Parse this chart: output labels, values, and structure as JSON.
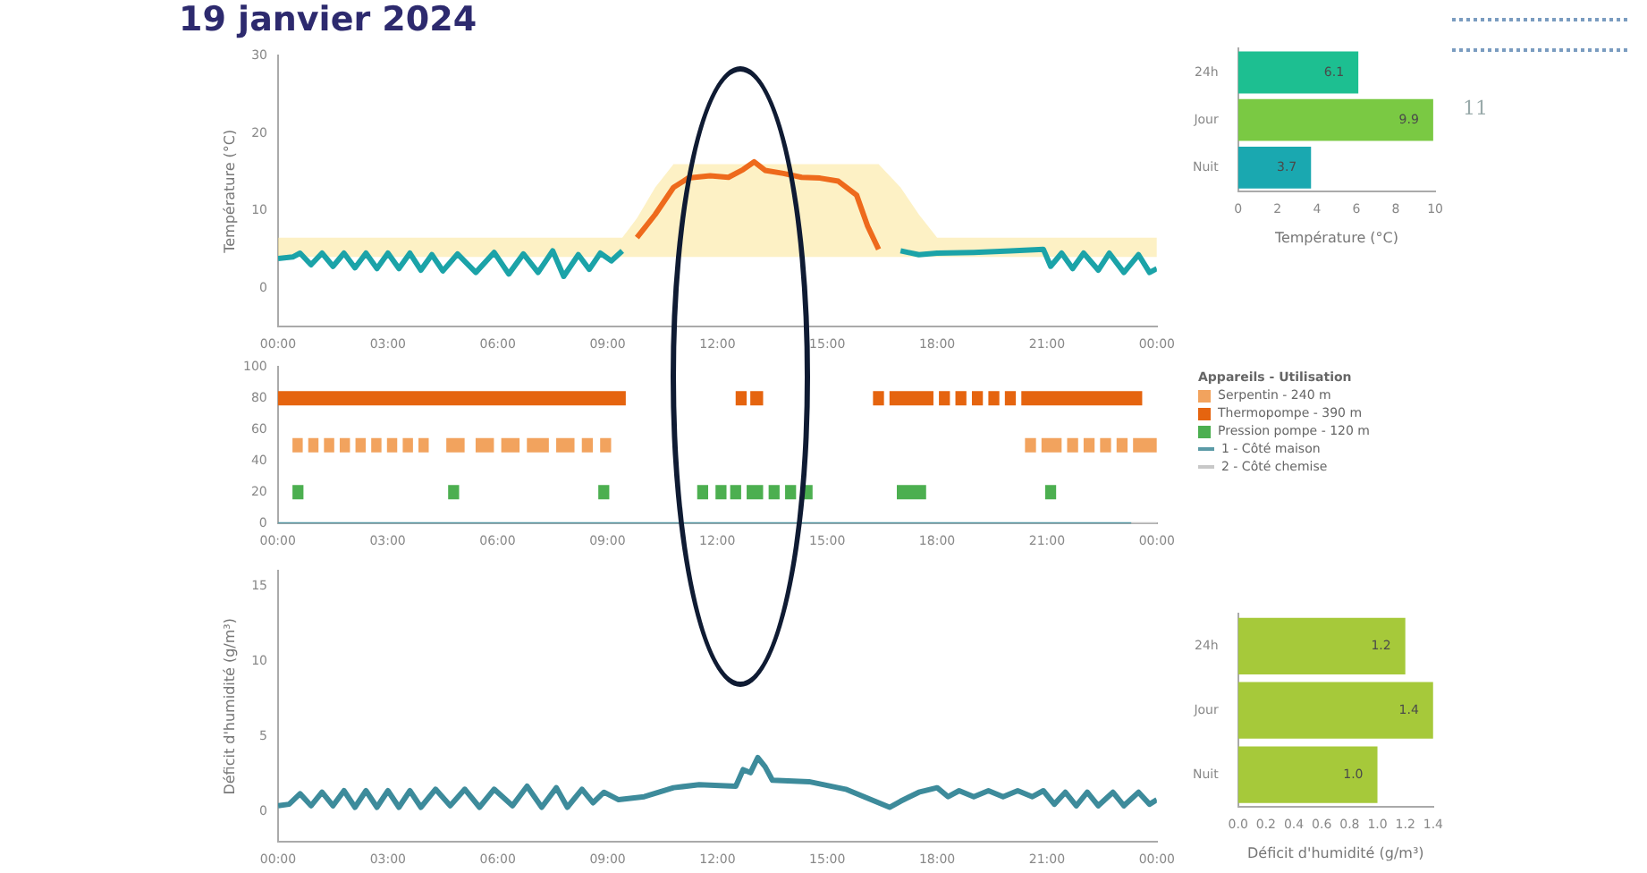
{
  "chart_data": [
    {
      "type": "line",
      "title": "19 janvier 2024",
      "ylabel": "Température (°C)",
      "xlim": [
        0,
        24
      ],
      "ylim": [
        -5,
        30
      ],
      "yticks": [
        0,
        10,
        20,
        30
      ],
      "xticks": [
        {
          "value": 0,
          "label": "00:00"
        },
        {
          "value": 3,
          "label": "03:00"
        },
        {
          "value": 6,
          "label": "06:00"
        },
        {
          "value": 9,
          "label": "09:00"
        },
        {
          "value": 12,
          "label": "12:00"
        },
        {
          "value": 15,
          "label": "15:00"
        },
        {
          "value": 18,
          "label": "18:00"
        },
        {
          "value": 21,
          "label": "21:00"
        },
        {
          "value": 24,
          "label": "00:00"
        }
      ],
      "x": [
        0,
        0.4,
        0.6,
        0.9,
        1.2,
        1.5,
        1.8,
        2.1,
        2.4,
        2.7,
        3.0,
        3.3,
        3.6,
        3.9,
        4.2,
        4.5,
        4.9,
        5.4,
        5.9,
        6.3,
        6.7,
        7.1,
        7.5,
        7.8,
        8.2,
        8.5,
        8.8,
        9.1,
        9.4,
        9.8,
        10.3,
        10.8,
        11.2,
        11.8,
        12.3,
        12.7,
        13.0,
        13.3,
        13.8,
        14.3,
        14.8,
        15.3,
        15.8,
        16.1,
        16.4,
        17.0,
        17.5,
        18.0,
        19.0,
        20.0,
        20.9,
        21.1,
        21.4,
        21.7,
        22.0,
        22.4,
        22.7,
        23.1,
        23.5,
        23.8,
        24
      ],
      "series": [
        {
          "color": "#1ba3a8",
          "values": [
            3.8,
            4.0,
            4.5,
            3.0,
            4.5,
            2.8,
            4.5,
            2.6,
            4.5,
            2.5,
            4.5,
            2.5,
            4.5,
            2.3,
            4.3,
            2.2,
            4.4,
            2.0,
            4.6,
            1.8,
            4.4,
            2.0,
            4.8,
            1.5,
            4.3,
            2.4,
            4.5,
            3.5,
            4.8,
            null,
            null,
            null,
            null,
            null,
            null,
            null,
            null,
            null,
            null,
            null,
            null,
            null,
            null,
            null,
            null,
            4.8,
            4.3,
            4.5,
            4.6,
            4.8,
            5.0,
            2.8,
            4.5,
            2.5,
            4.5,
            2.3,
            4.5,
            2.0,
            4.3,
            2.0,
            2.5
          ],
          "lower": [
            4,
            4,
            4,
            4,
            4,
            4,
            4,
            4,
            4,
            4,
            4,
            4,
            4,
            4,
            4,
            4,
            4,
            4,
            4,
            4,
            4,
            4,
            4,
            4,
            4,
            4,
            4,
            4,
            4,
            4,
            4,
            4,
            4,
            4,
            4,
            4,
            4,
            4,
            4,
            4,
            4,
            4,
            4,
            4,
            4,
            4,
            4,
            4,
            4,
            4,
            4,
            4,
            4,
            4,
            4,
            4,
            4,
            4,
            4,
            4,
            4
          ],
          "upper": [
            6.5,
            6.5,
            6.5,
            6.5,
            6.5,
            6.5,
            6.5,
            6.5,
            6.5,
            6.5,
            6.5,
            6.5,
            6.5,
            6.5,
            6.5,
            6.5,
            6.5,
            6.5,
            6.5,
            6.5,
            6.5,
            6.5,
            6.5,
            6.5,
            6.5,
            6.5,
            6.5,
            6.5,
            6.5,
            9,
            13,
            16,
            16,
            16,
            16,
            16,
            16,
            16,
            16,
            16,
            16,
            16,
            16,
            16,
            16,
            13,
            9.5,
            6.5,
            6.5,
            6.5,
            6.5,
            6.5,
            6.5,
            6.5,
            6.5,
            6.5,
            6.5,
            6.5,
            6.5,
            6.5,
            6.5
          ]
        },
        {
          "color": "#ee6a1c",
          "x": [
            9.8,
            10.3,
            10.8,
            11.2,
            11.8,
            12.3,
            12.7,
            13.0,
            13.3,
            13.8,
            14.3,
            14.8,
            15.3,
            15.8,
            16.1,
            16.4
          ],
          "values": [
            6.5,
            9.5,
            13,
            14.2,
            14.5,
            14.3,
            15.3,
            16.3,
            15.2,
            14.8,
            14.3,
            14.2,
            13.8,
            12,
            8,
            5.0
          ]
        }
      ]
    },
    {
      "type": "bar",
      "orientation": "horizontal",
      "xlabel": "Température (°C)",
      "categories": [
        "24h",
        "Jour",
        "Nuit"
      ],
      "values": [
        6.1,
        9.9,
        3.7
      ],
      "colors": [
        "#1dbf91",
        "#7ac943",
        "#1aa8b0"
      ],
      "xlim": [
        0,
        10
      ],
      "xticks": [
        0,
        2,
        4,
        6,
        8,
        10
      ],
      "data_labels": true,
      "annotations": [
        "11"
      ]
    },
    {
      "type": "line",
      "legend": "right",
      "legend_title": "Appareils - Utilisation",
      "xlim": [
        0,
        24
      ],
      "ylim": [
        0,
        100
      ],
      "yticks": [
        0,
        20,
        40,
        60,
        80,
        100
      ],
      "xticks": [
        {
          "value": 0,
          "label": "00:00"
        },
        {
          "value": 3,
          "label": "03:00"
        },
        {
          "value": 6,
          "label": "06:00"
        },
        {
          "value": 9,
          "label": "09:00"
        },
        {
          "value": 12,
          "label": "12:00"
        },
        {
          "value": 15,
          "label": "15:00"
        },
        {
          "value": 18,
          "label": "18:00"
        },
        {
          "value": 21,
          "label": "21:00"
        },
        {
          "value": 24,
          "label": "00:00"
        }
      ],
      "series": [
        {
          "name": "Serpentin - 240 m",
          "color": "#f2a35e",
          "x": [
            0.4,
            0.68,
            0.755,
            0.83,
            1.11,
            1.185,
            1.26,
            1.54,
            1.615,
            1.69,
            1.97,
            2.045,
            2.12,
            2.4,
            2.475,
            2.55,
            2.83,
            2.905,
            2.98,
            3.26,
            3.335,
            3.41,
            3.69,
            3.765,
            3.84,
            4.12,
            4.36,
            4.6,
            5.1,
            5.25,
            5.4,
            5.9,
            6.0,
            6.1,
            6.6,
            6.7,
            6.8,
            7.4,
            7.5,
            7.6,
            8.1,
            8.2,
            8.3,
            8.6,
            8.7,
            8.8,
            9.1,
            15,
            20.4,
            20.7,
            20.775,
            20.85,
            21.4,
            21.475,
            21.55,
            21.85,
            21.925,
            22.0,
            22.3,
            22.375,
            22.45,
            22.75,
            22.825,
            22.9,
            23.2,
            23.275,
            23.35,
            24
          ],
          "values": [
            50,
            50,
            null,
            50,
            50,
            null,
            50,
            50,
            null,
            50,
            50,
            null,
            50,
            50,
            null,
            50,
            50,
            null,
            50,
            50,
            null,
            50,
            50,
            null,
            50,
            50,
            null,
            50,
            50,
            null,
            50,
            50,
            null,
            50,
            50,
            null,
            50,
            50,
            null,
            50,
            50,
            null,
            50,
            50,
            null,
            50,
            50,
            null,
            50,
            50,
            null,
            50,
            50,
            null,
            50,
            50,
            null,
            50,
            50,
            null,
            50,
            50,
            null,
            50,
            50,
            null,
            50,
            50
          ]
        },
        {
          "name": "Thermopompe - 390 m",
          "color": "#e5640f",
          "x": [
            0,
            9.5,
            11,
            12.5,
            12.8,
            12.85,
            12.9,
            13.25,
            14.7,
            16.25,
            16.55,
            16.62,
            16.7,
            17.9,
            17.97,
            18.05,
            18.35,
            18.42,
            18.5,
            18.8,
            18.87,
            18.95,
            19.25,
            19.32,
            19.4,
            19.7,
            19.77,
            19.85,
            20.15,
            20.22,
            20.3,
            23.6
          ],
          "values": [
            80,
            80,
            null,
            80,
            80,
            null,
            80,
            80,
            null,
            80,
            80,
            null,
            80,
            80,
            null,
            80,
            80,
            null,
            80,
            80,
            null,
            80,
            80,
            null,
            80,
            80,
            null,
            80,
            80,
            null,
            80,
            80
          ]
        },
        {
          "name": "Pression pompe - 120 m",
          "color": "#4caf50",
          "x": [
            0.4,
            0.7,
            2.7,
            4.65,
            4.95,
            6.9,
            8.75,
            9.05,
            10.2,
            11.45,
            11.75,
            11.85,
            11.95,
            12.25,
            12.3,
            12.35,
            12.65,
            12.72,
            12.8,
            13.25,
            13.32,
            13.4,
            13.7,
            13.77,
            13.85,
            14.15,
            14.22,
            14.3,
            14.6,
            15.7,
            16.9,
            17.7,
            19.3,
            20.95,
            21.25
          ],
          "values": [
            20,
            20,
            null,
            20,
            20,
            null,
            20,
            20,
            null,
            20,
            20,
            null,
            20,
            20,
            null,
            20,
            20,
            null,
            20,
            20,
            null,
            20,
            20,
            null,
            20,
            20,
            null,
            20,
            20,
            null,
            20,
            20,
            null,
            20,
            20
          ]
        },
        {
          "name": "1 - Côté maison",
          "color": "#5b9aa6",
          "x": [
            0,
            23.3
          ],
          "values": [
            0,
            0
          ]
        },
        {
          "name": "2 - Côté chemise",
          "color": "#c8c8c8",
          "x": [
            23.3,
            24
          ],
          "values": [
            0,
            0
          ]
        }
      ]
    },
    {
      "type": "line",
      "ylabel": "Déficit d'humidité (g/m³)",
      "xlim": [
        0,
        24
      ],
      "ylim": [
        -2,
        16
      ],
      "yticks": [
        0,
        5,
        10,
        15
      ],
      "xticks": [
        {
          "value": 0,
          "label": "00:00"
        },
        {
          "value": 3,
          "label": "03:00"
        },
        {
          "value": 6,
          "label": "06:00"
        },
        {
          "value": 9,
          "label": "09:00"
        },
        {
          "value": 12,
          "label": "12:00"
        },
        {
          "value": 15,
          "label": "15:00"
        },
        {
          "value": 18,
          "label": "18:00"
        },
        {
          "value": 21,
          "label": "21:00"
        },
        {
          "value": 24,
          "label": "00:00"
        }
      ],
      "x": [
        0,
        0.3,
        0.6,
        0.9,
        1.2,
        1.5,
        1.8,
        2.1,
        2.4,
        2.7,
        3.0,
        3.3,
        3.6,
        3.9,
        4.3,
        4.7,
        5.1,
        5.5,
        5.9,
        6.4,
        6.8,
        7.2,
        7.6,
        7.9,
        8.3,
        8.6,
        8.9,
        9.3,
        10,
        10.8,
        11.5,
        12.5,
        12.7,
        12.9,
        13.1,
        13.3,
        13.5,
        14.5,
        15.5,
        16.3,
        16.7,
        17.0,
        17.5,
        18.0,
        18.3,
        18.6,
        19.0,
        19.4,
        19.8,
        20.2,
        20.6,
        20.9,
        21.2,
        21.5,
        21.8,
        22.1,
        22.4,
        22.8,
        23.1,
        23.5,
        23.8,
        24
      ],
      "series": [
        {
          "color": "#3d8b9b",
          "values": [
            0.4,
            0.5,
            1.2,
            0.4,
            1.3,
            0.4,
            1.4,
            0.3,
            1.4,
            0.3,
            1.4,
            0.3,
            1.4,
            0.3,
            1.5,
            0.4,
            1.5,
            0.3,
            1.5,
            0.4,
            1.7,
            0.3,
            1.6,
            0.3,
            1.5,
            0.6,
            1.3,
            0.8,
            1.0,
            1.6,
            1.8,
            1.7,
            2.8,
            2.6,
            3.6,
            3.0,
            2.1,
            2.0,
            1.5,
            0.7,
            0.3,
            0.7,
            1.3,
            1.6,
            1.0,
            1.4,
            1.0,
            1.4,
            1.0,
            1.4,
            1.0,
            1.4,
            0.5,
            1.3,
            0.4,
            1.3,
            0.4,
            1.3,
            0.4,
            1.3,
            0.5,
            0.8
          ]
        }
      ]
    },
    {
      "type": "bar",
      "orientation": "horizontal",
      "xlabel": "Déficit d'humidité (g/m³)",
      "categories": [
        "24h",
        "Jour",
        "Nuit"
      ],
      "values": [
        1.2,
        1.4,
        1.0
      ],
      "value_labels": [
        "1.2",
        "1.4",
        "1.0"
      ],
      "colors": [
        "#a6c93a",
        "#a6c93a",
        "#a6c93a"
      ],
      "xlim": [
        0,
        1.4
      ],
      "xticks": [
        {
          "value": 0,
          "label": "0.0"
        },
        0.2,
        0.4,
        0.6,
        0.8,
        {
          "value": 1,
          "label": "1.0"
        },
        1.2,
        1.4
      ]
    }
  ]
}
